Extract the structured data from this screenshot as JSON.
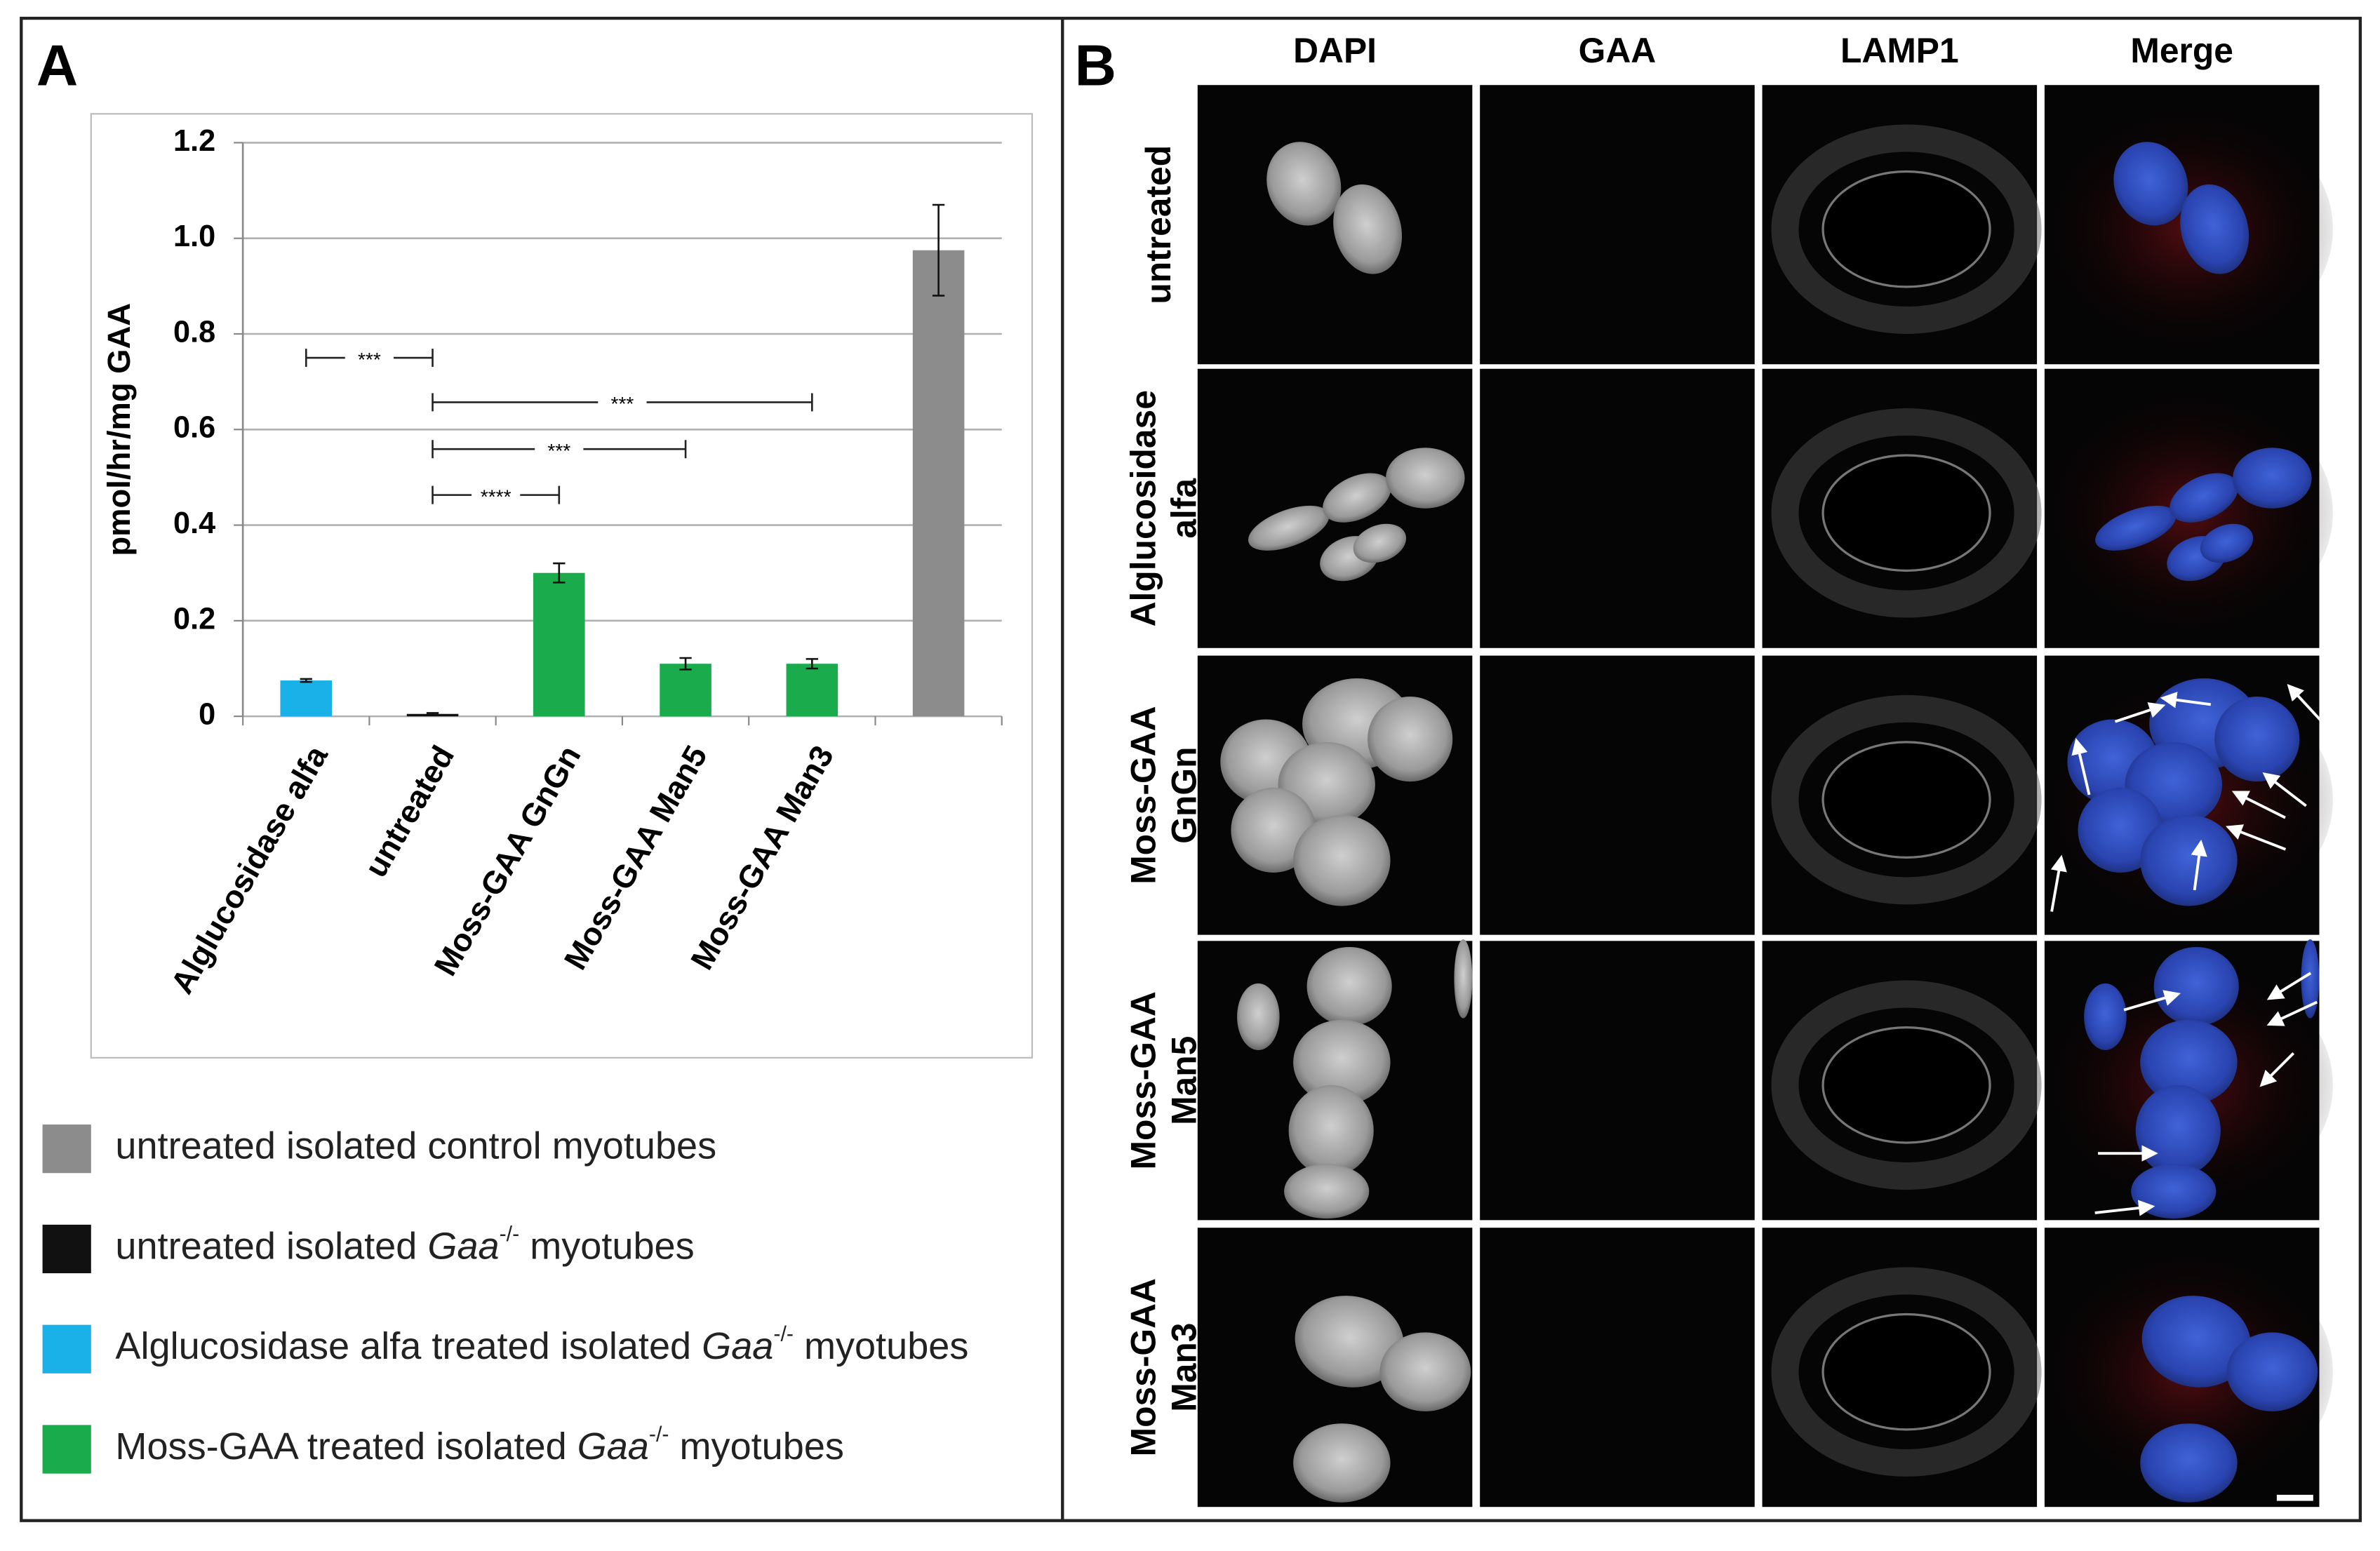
{
  "panel_a": {
    "letter": "A"
  },
  "panel_b": {
    "letter": "B",
    "columns": [
      "DAPI",
      "GAA",
      "LAMP1",
      "Merge"
    ],
    "rows": [
      {
        "lines": [
          "untreated"
        ]
      },
      {
        "lines": [
          "Alglucosidase",
          "alfa"
        ]
      },
      {
        "lines": [
          "Moss-GAA",
          "GnGn"
        ]
      },
      {
        "lines": [
          "Moss-GAA",
          "Man5"
        ]
      },
      {
        "lines": [
          "Moss-GAA",
          "Man3"
        ]
      }
    ]
  },
  "chart_data": {
    "type": "bar",
    "ylabel": "pmol/hr/mg GAA",
    "categories": [
      "Alglucosidase alfa",
      "untreated",
      "Moss-GAA GnGn",
      "Moss-GAA Man5",
      "Moss-GAA Man3",
      null
    ],
    "values": [
      0.075,
      0.005,
      0.3,
      0.11,
      0.11,
      0.975
    ],
    "errors": [
      0.003,
      0.002,
      0.02,
      0.012,
      0.01,
      0.095
    ],
    "colors": [
      "#1ab1e8",
      "#111111",
      "#1aab4c",
      "#1aab4c",
      "#1aab4c",
      "#8c8c8c"
    ],
    "ylim": [
      0,
      1.2
    ],
    "yticks": [
      0,
      0.2,
      0.4,
      0.6,
      0.8,
      {
        "value": 1,
        "label": "1.0"
      },
      1.2
    ],
    "grid": true,
    "annotations": [
      {
        "from": "Alglucosidase alfa",
        "to": "untreated",
        "y": 0.75,
        "label": "***"
      },
      {
        "from": "untreated",
        "to": "Moss-GAA Man3",
        "y": 0.657,
        "label": "***"
      },
      {
        "from": "untreated",
        "to": "Moss-GAA Man5",
        "y": 0.559,
        "label": "***"
      },
      {
        "from": "untreated",
        "to": "Moss-GAA GnGn",
        "y": 0.463,
        "label": "****"
      }
    ],
    "legend": [
      {
        "color": "#8c8c8c",
        "parts": [
          {
            "text": "untreated isolated control myotubes",
            "style": "normal"
          }
        ]
      },
      {
        "color": "#111111",
        "parts": [
          {
            "text": "untreated isolated ",
            "style": "normal"
          },
          {
            "text": "Gaa",
            "style": "italic"
          },
          {
            "text": "-/-",
            "style": "sup"
          },
          {
            "text": " myotubes",
            "style": "normal"
          }
        ]
      },
      {
        "color": "#1ab1e8",
        "parts": [
          {
            "text": "Alglucosidase alfa treated isolated ",
            "style": "normal"
          },
          {
            "text": "Gaa",
            "style": "italic"
          },
          {
            "text": "-/-",
            "style": "sup"
          },
          {
            "text": " myotubes",
            "style": "normal"
          }
        ]
      },
      {
        "color": "#1aab4c",
        "parts": [
          {
            "text": "Moss-GAA treated isolated ",
            "style": "normal"
          },
          {
            "text": "Gaa",
            "style": "italic"
          },
          {
            "text": "-/-",
            "style": "sup"
          },
          {
            "text": " myotubes",
            "style": "normal"
          }
        ]
      }
    ]
  }
}
